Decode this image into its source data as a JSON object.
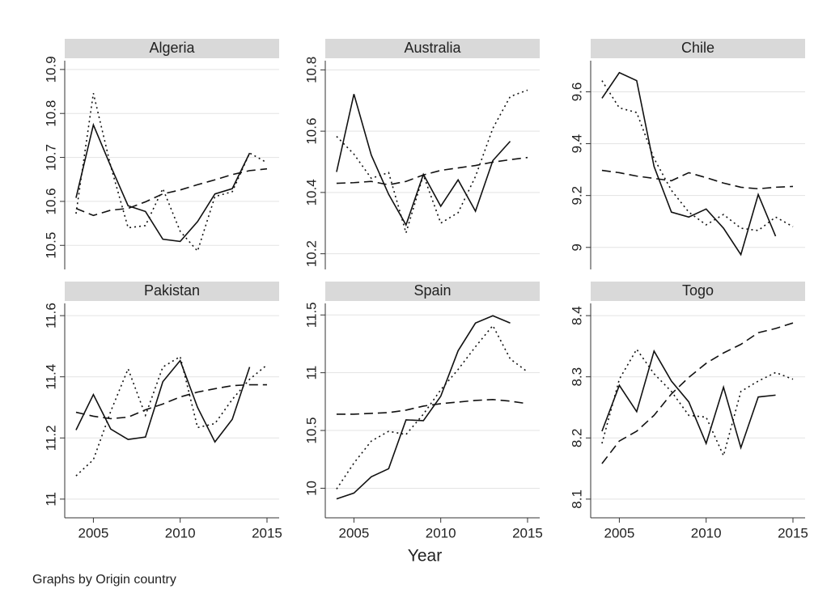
{
  "chart_data": [
    {
      "type": "line",
      "title": "Algeria",
      "x": [
        2004,
        2005,
        2006,
        2007,
        2008,
        2009,
        2010,
        2011,
        2012,
        2013,
        2014,
        2015
      ],
      "xlim": [
        2003.35,
        2015.7
      ],
      "ylim": [
        10.46,
        10.92
      ],
      "yticks": [
        10.5,
        10.6,
        10.7,
        10.8,
        10.9
      ],
      "grid": true,
      "series": [
        {
          "color": "#111111",
          "dash": "solid",
          "values": [
            10.608,
            10.774,
            10.68,
            10.59,
            10.577,
            10.514,
            10.509,
            10.554,
            10.617,
            10.629,
            10.71,
            null
          ]
        },
        {
          "color": "#111111",
          "dash": "dot",
          "values": [
            10.572,
            10.846,
            10.68,
            10.54,
            10.545,
            10.629,
            10.532,
            10.487,
            10.611,
            10.622,
            10.71,
            10.688
          ]
        },
        {
          "color": "#111111",
          "dash": "dash",
          "values": [
            10.584,
            10.568,
            10.58,
            10.584,
            10.599,
            10.617,
            10.626,
            10.638,
            10.649,
            10.661,
            10.67,
            10.674
          ]
        }
      ]
    },
    {
      "type": "line",
      "title": "Australia",
      "x": [
        2004,
        2005,
        2006,
        2007,
        2008,
        2009,
        2010,
        2011,
        2012,
        2013,
        2014,
        2015
      ],
      "xlim": [
        2003.35,
        2015.7
      ],
      "ylim": [
        10.17,
        10.83
      ],
      "yticks": [
        10.2,
        10.4,
        10.6,
        10.8
      ],
      "grid": true,
      "series": [
        {
          "color": "#111111",
          "dash": "solid",
          "values": [
            10.467,
            10.721,
            10.522,
            10.394,
            10.294,
            10.459,
            10.355,
            10.441,
            10.339,
            10.504,
            10.567,
            null
          ]
        },
        {
          "color": "#111111",
          "dash": "dot",
          "values": [
            10.583,
            10.525,
            10.446,
            10.465,
            10.268,
            10.457,
            10.3,
            10.334,
            10.452,
            10.609,
            10.713,
            10.734
          ]
        },
        {
          "color": "#111111",
          "dash": "dash",
          "values": [
            10.43,
            10.432,
            10.436,
            10.425,
            10.436,
            10.457,
            10.472,
            10.48,
            10.488,
            10.499,
            10.507,
            10.514
          ]
        }
      ]
    },
    {
      "type": "line",
      "title": "Chile",
      "x": [
        2004,
        2005,
        2006,
        2007,
        2008,
        2009,
        2010,
        2011,
        2012,
        2013,
        2014,
        2015
      ],
      "xlim": [
        2003.35,
        2015.7
      ],
      "ylim": [
        8.94,
        9.72
      ],
      "yticks": [
        9,
        9.2,
        9.4,
        9.6
      ],
      "grid": true,
      "series": [
        {
          "color": "#111111",
          "dash": "solid",
          "values": [
            9.575,
            9.674,
            9.643,
            9.312,
            9.136,
            9.117,
            9.148,
            9.074,
            8.972,
            9.204,
            9.043,
            null
          ]
        },
        {
          "color": "#111111",
          "dash": "dot",
          "values": [
            9.643,
            9.538,
            9.52,
            9.343,
            9.22,
            9.136,
            9.087,
            9.127,
            9.074,
            9.065,
            9.117,
            9.08
          ]
        },
        {
          "color": "#111111",
          "dash": "dash",
          "values": [
            9.297,
            9.288,
            9.275,
            9.266,
            9.257,
            9.288,
            9.269,
            9.248,
            9.232,
            9.226,
            9.232,
            9.235
          ]
        }
      ]
    },
    {
      "type": "line",
      "title": "Pakistan",
      "x": [
        2004,
        2005,
        2006,
        2007,
        2008,
        2009,
        2010,
        2011,
        2012,
        2013,
        2014,
        2015
      ],
      "xlim": [
        2003.35,
        2015.7
      ],
      "xticks": [
        2005,
        2010,
        2015
      ],
      "ylim": [
        10.96,
        11.64
      ],
      "yticks": [
        11,
        11.2,
        11.4,
        11.6
      ],
      "grid": true,
      "series": [
        {
          "color": "#111111",
          "dash": "solid",
          "values": [
            11.226,
            11.342,
            11.229,
            11.195,
            11.203,
            11.384,
            11.453,
            11.3,
            11.187,
            11.261,
            11.432,
            null
          ]
        },
        {
          "color": "#111111",
          "dash": "dot",
          "values": [
            11.076,
            11.129,
            11.287,
            11.426,
            11.274,
            11.432,
            11.466,
            11.234,
            11.247,
            11.326,
            11.392,
            11.439
          ]
        },
        {
          "color": "#111111",
          "dash": "dash",
          "values": [
            11.284,
            11.271,
            11.263,
            11.268,
            11.292,
            11.311,
            11.334,
            11.35,
            11.361,
            11.371,
            11.374,
            11.374
          ]
        }
      ]
    },
    {
      "type": "line",
      "title": "Spain",
      "x": [
        2004,
        2005,
        2006,
        2007,
        2008,
        2009,
        2010,
        2011,
        2012,
        2013,
        2014,
        2015
      ],
      "xlim": [
        2003.35,
        2015.7
      ],
      "xticks": [
        2005,
        2010,
        2015
      ],
      "ylim": [
        9.8,
        11.6
      ],
      "yticks": [
        10,
        10.5,
        11,
        11.5
      ],
      "grid": true,
      "series": [
        {
          "color": "#111111",
          "dash": "solid",
          "values": [
            9.908,
            9.958,
            10.099,
            10.169,
            10.592,
            10.585,
            10.796,
            11.19,
            11.43,
            11.493,
            11.43,
            null
          ]
        },
        {
          "color": "#111111",
          "dash": "dot",
          "values": [
            9.993,
            10.218,
            10.408,
            10.493,
            10.465,
            10.641,
            10.852,
            11.028,
            11.225,
            11.408,
            11.12,
            11.007
          ]
        },
        {
          "color": "#111111",
          "dash": "dash",
          "values": [
            10.641,
            10.641,
            10.648,
            10.655,
            10.676,
            10.711,
            10.732,
            10.746,
            10.76,
            10.768,
            10.754,
            10.732
          ]
        }
      ]
    },
    {
      "type": "line",
      "title": "Togo",
      "x": [
        2004,
        2005,
        2006,
        2007,
        2008,
        2009,
        2010,
        2011,
        2012,
        2013,
        2014,
        2015
      ],
      "xlim": [
        2003.35,
        2015.7
      ],
      "xticks": [
        2005,
        2010,
        2015
      ],
      "ylim": [
        8.08,
        8.42
      ],
      "yticks": [
        8.1,
        8.2,
        8.3,
        8.4
      ],
      "grid": true,
      "series": [
        {
          "color": "#111111",
          "dash": "solid",
          "values": [
            8.211,
            8.286,
            8.243,
            8.342,
            8.293,
            8.259,
            8.191,
            8.283,
            8.184,
            8.267,
            8.27,
            null
          ]
        },
        {
          "color": "#111111",
          "dash": "dot",
          "values": [
            8.191,
            8.296,
            8.345,
            8.305,
            8.276,
            8.237,
            8.234,
            8.171,
            8.276,
            8.293,
            8.307,
            8.296
          ]
        },
        {
          "color": "#111111",
          "dash": "dash",
          "values": [
            8.158,
            8.195,
            8.211,
            8.237,
            8.272,
            8.299,
            8.322,
            8.339,
            8.353,
            8.372,
            8.379,
            8.388
          ]
        }
      ]
    }
  ],
  "xlabel": "Year",
  "note": "Graphs by Origin country"
}
